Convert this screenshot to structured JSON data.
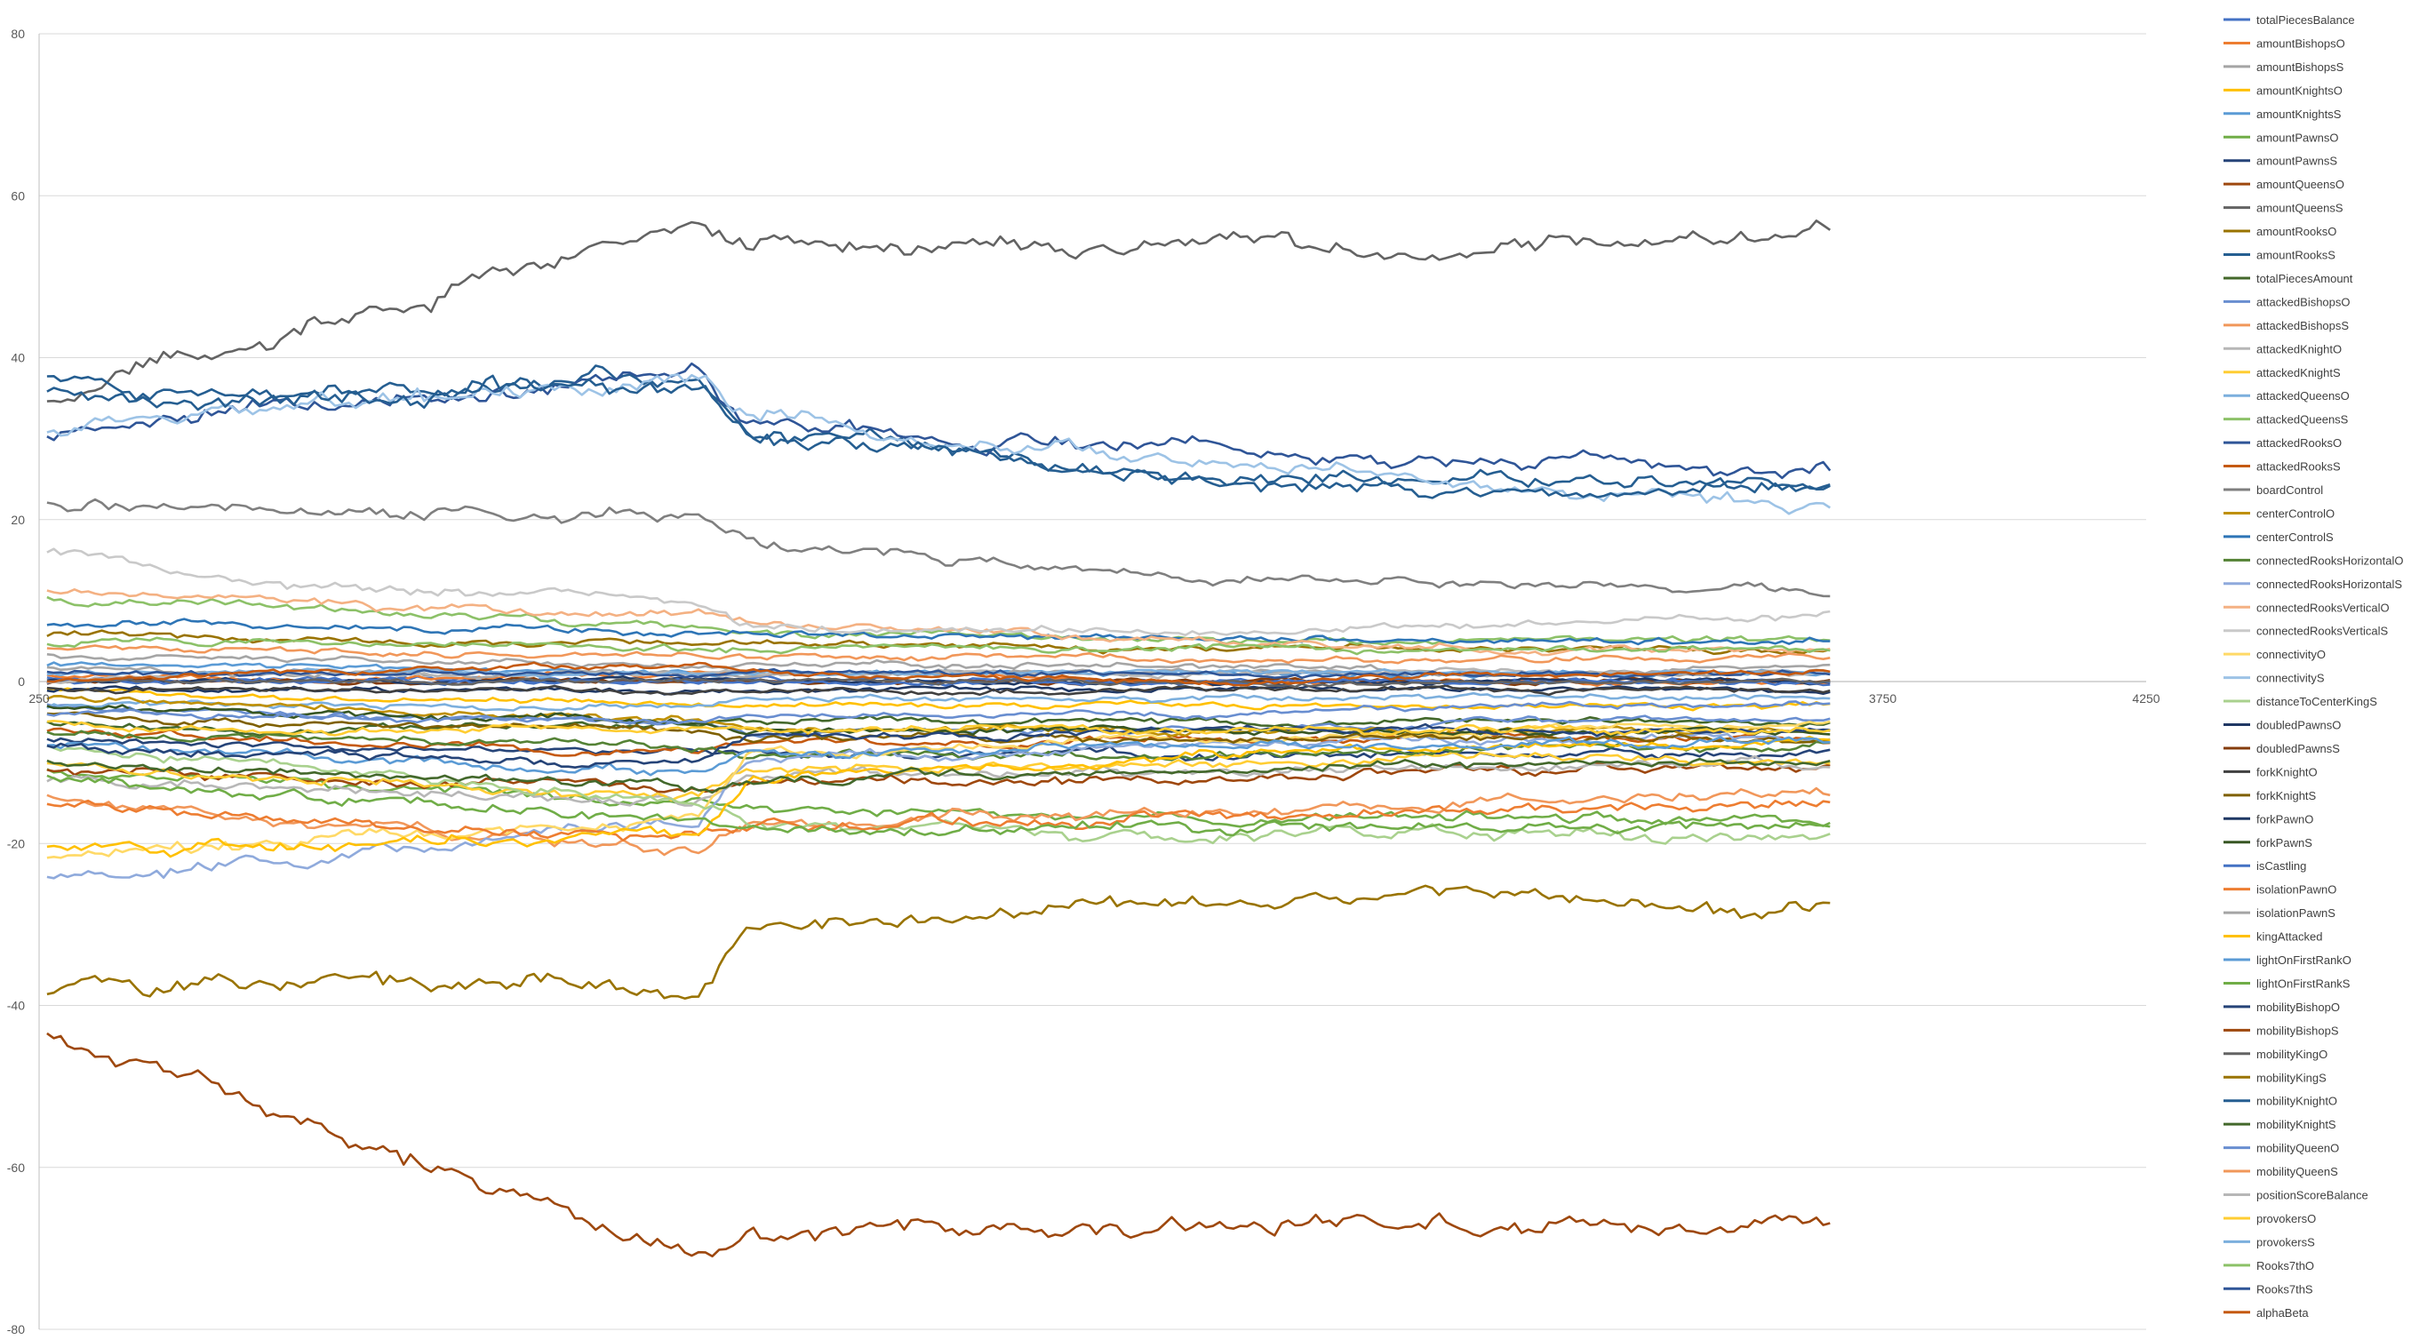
{
  "chart_data": {
    "type": "line",
    "title": "",
    "xlabel": "",
    "ylabel": "",
    "xlim": [
      250,
      4250
    ],
    "ylim": [
      -80,
      80
    ],
    "x_ticks": [
      "250",
      "3750",
      "4250"
    ],
    "y_ticks": [
      "80",
      "60",
      "40",
      "20",
      "0",
      "-20",
      "-40",
      "-60",
      "-80"
    ],
    "y_tick_values": [
      80,
      60,
      40,
      20,
      0,
      -20,
      -40,
      -60,
      -80
    ],
    "x_tick_values": [
      250,
      3750,
      4250
    ],
    "grid": "horizontal",
    "legend_position": "right",
    "x": [
      265,
      650,
      1500,
      1600,
      2500,
      3000,
      3650
    ],
    "series": [
      {
        "name": "totalPiecesBalance",
        "color": "#4472c4",
        "values": [
          0.5,
          0.3,
          0.2,
          0.1,
          0.0,
          -0.1,
          0.1
        ]
      },
      {
        "name": "amountBishopsO",
        "color": "#ed7d31",
        "values": [
          1,
          0,
          1,
          1,
          0,
          0,
          0
        ]
      },
      {
        "name": "amountBishopsS",
        "color": "#a5a5a5",
        "values": [
          3,
          3,
          2,
          2,
          2,
          1,
          2
        ]
      },
      {
        "name": "amountKnightsO",
        "color": "#ffc000",
        "values": [
          -1,
          -2,
          -3,
          -3,
          -3,
          -3,
          -3
        ]
      },
      {
        "name": "amountKnightsS",
        "color": "#5b9bd5",
        "values": [
          2,
          2,
          1,
          1,
          1,
          1,
          1
        ]
      },
      {
        "name": "amountPawnsO",
        "color": "#70ad47",
        "values": [
          -11,
          -12,
          -15,
          -16,
          -17,
          -17,
          -17
        ]
      },
      {
        "name": "amountPawnsS",
        "color": "#264478",
        "values": [
          -7,
          -8,
          -9,
          -9,
          -9,
          -9,
          -9
        ]
      },
      {
        "name": "amountQueensO",
        "color": "#9e480e",
        "values": [
          -11,
          -12,
          -13,
          -12,
          -12,
          -11,
          -11
        ]
      },
      {
        "name": "amountQueensS",
        "color": "#636363",
        "values": [
          35,
          42,
          56,
          54,
          54,
          53,
          55
        ]
      },
      {
        "name": "amountRooksO",
        "color": "#997300",
        "values": [
          6,
          5,
          5,
          5,
          4,
          4,
          4
        ]
      },
      {
        "name": "amountRooksS",
        "color": "#255e91",
        "values": [
          37,
          36,
          37,
          31,
          25,
          25,
          24
        ]
      },
      {
        "name": "totalPiecesAmount",
        "color": "#43682b",
        "values": [
          -5,
          -6,
          -5,
          -5,
          -5,
          -5,
          -5
        ]
      },
      {
        "name": "attackedBishopsO",
        "color": "#698ed0",
        "values": [
          -3,
          -4,
          -5,
          -6,
          -6,
          -5,
          -5
        ]
      },
      {
        "name": "attackedBishopsS",
        "color": "#f1975a",
        "values": [
          -14,
          -17,
          -21,
          -18,
          -16,
          -15,
          -14
        ]
      },
      {
        "name": "attackedKnightO",
        "color": "#b7b7b7",
        "values": [
          -12,
          -13,
          -15,
          -12,
          -11,
          -11,
          -10
        ]
      },
      {
        "name": "attackedKnightS",
        "color": "#ffcd33",
        "values": [
          -10,
          -12,
          -14,
          -11,
          -10,
          -9,
          -10
        ]
      },
      {
        "name": "attackedQueensO",
        "color": "#7cafdd",
        "values": [
          -3,
          -3,
          -3,
          -2,
          -2,
          -2,
          -2
        ]
      },
      {
        "name": "attackedQueensS",
        "color": "#8cc168",
        "values": [
          10,
          9,
          7,
          6,
          5,
          5,
          5
        ]
      },
      {
        "name": "attackedRooksO",
        "color": "#2f5597",
        "values": [
          30,
          33,
          38,
          32,
          28,
          27,
          26
        ]
      },
      {
        "name": "attackedRooksS",
        "color": "#c55a11",
        "values": [
          -6,
          -7,
          -9,
          -8,
          -7,
          -7,
          -7
        ]
      },
      {
        "name": "boardControl",
        "color": "#7f7f7f",
        "values": [
          22,
          21,
          21,
          17,
          13,
          12,
          11
        ]
      },
      {
        "name": "centerControlO",
        "color": "#bf9000",
        "values": [
          -2,
          -3,
          -5,
          -6,
          -6,
          -6,
          -6
        ]
      },
      {
        "name": "centerControlS",
        "color": "#2e75b6",
        "values": [
          7,
          7,
          6,
          6,
          5,
          5,
          5
        ]
      },
      {
        "name": "connectedRooksHorizontalO",
        "color": "#548235",
        "values": [
          -6,
          -7,
          -8,
          -9,
          -9,
          -8,
          -8
        ]
      },
      {
        "name": "connectedRooksHorizontalS",
        "color": "#8faadc",
        "values": [
          -24,
          -22,
          -18,
          -10,
          -8,
          -7,
          -7
        ]
      },
      {
        "name": "connectedRooksVerticalO",
        "color": "#f4b183",
        "values": [
          11,
          10,
          8,
          7,
          5,
          4,
          4
        ]
      },
      {
        "name": "connectedRooksVerticalS",
        "color": "#c9c9c9",
        "values": [
          16,
          12,
          10,
          7,
          6,
          7,
          8
        ]
      },
      {
        "name": "connectivityO",
        "color": "#ffd966",
        "values": [
          -22,
          -20,
          -17,
          -9,
          -7,
          -6,
          -5
        ]
      },
      {
        "name": "connectivityS",
        "color": "#9dc3e6",
        "values": [
          31,
          34,
          37,
          33,
          27,
          24,
          21
        ]
      },
      {
        "name": "distanceToCenterKingS",
        "color": "#a9d18e",
        "values": [
          -8,
          -10,
          -15,
          -18,
          -19,
          -19,
          -19
        ]
      },
      {
        "name": "doubledPawnsO",
        "color": "#203864",
        "values": [
          -1,
          -1,
          -1,
          -1,
          -1,
          -1,
          -1
        ]
      },
      {
        "name": "doubledPawnsS",
        "color": "#843c0c",
        "values": [
          0,
          0,
          0,
          0,
          0,
          0,
          0
        ]
      },
      {
        "name": "forkKnightO",
        "color": "#404040",
        "values": [
          -1,
          -1,
          -1,
          -1,
          -1,
          -1,
          -1
        ]
      },
      {
        "name": "forkKnightS",
        "color": "#7f6000",
        "values": [
          -4,
          -5,
          -6,
          -7,
          -7,
          -7,
          -7
        ]
      },
      {
        "name": "forkPawnO",
        "color": "#1f3864",
        "values": [
          0,
          0,
          0,
          0,
          0,
          0,
          0
        ]
      },
      {
        "name": "forkPawnS",
        "color": "#375623",
        "values": [
          -3,
          -4,
          -5,
          -6,
          -6,
          -6,
          -6
        ]
      },
      {
        "name": "isCastling",
        "color": "#4472c4",
        "values": [
          0,
          0,
          0,
          0,
          0,
          0,
          0
        ]
      },
      {
        "name": "isolationPawnO",
        "color": "#ed7d31",
        "values": [
          -15,
          -17,
          -19,
          -18,
          -17,
          -16,
          -15
        ]
      },
      {
        "name": "isolationPawnS",
        "color": "#a5a5a5",
        "values": [
          2,
          1,
          1,
          1,
          1,
          1,
          1
        ]
      },
      {
        "name": "kingAttacked",
        "color": "#ffc000",
        "values": [
          -21,
          -20,
          -19,
          -12,
          -9,
          -8,
          -7
        ]
      },
      {
        "name": "lightOnFirstRankO",
        "color": "#5b9bd5",
        "values": [
          -8,
          -9,
          -11,
          -9,
          -8,
          -8,
          -7
        ]
      },
      {
        "name": "lightOnFirstRankS",
        "color": "#70ad47",
        "values": [
          -12,
          -14,
          -17,
          -18,
          -18,
          -18,
          -18
        ]
      },
      {
        "name": "mobilityBishopO",
        "color": "#264478",
        "values": [
          -8,
          -9,
          -10,
          -7,
          -6,
          -6,
          -6
        ]
      },
      {
        "name": "mobilityBishopS",
        "color": "#9e480e",
        "values": [
          -43,
          -52,
          -71,
          -68,
          -67,
          -67,
          -67
        ]
      },
      {
        "name": "mobilityKingO",
        "color": "#636363",
        "values": [
          0,
          0,
          0,
          0,
          0,
          0,
          0
        ]
      },
      {
        "name": "mobilityKingS",
        "color": "#997300",
        "values": [
          -38,
          -37,
          -38,
          -30,
          -27,
          -26,
          -29
        ]
      },
      {
        "name": "mobilityKnightO",
        "color": "#255e91",
        "values": [
          36,
          35,
          37,
          30,
          25,
          24,
          24
        ]
      },
      {
        "name": "mobilityKnightS",
        "color": "#43682b",
        "values": [
          -10,
          -11,
          -13,
          -12,
          -11,
          -10,
          -10
        ]
      },
      {
        "name": "mobilityQueenO",
        "color": "#698ed0",
        "values": [
          -4,
          -4,
          -5,
          -4,
          -4,
          -3,
          -3
        ]
      },
      {
        "name": "mobilityQueenS",
        "color": "#f1975a",
        "values": [
          4,
          4,
          3,
          3,
          3,
          3,
          3
        ]
      },
      {
        "name": "positionScoreBalance",
        "color": "#b7b7b7",
        "values": [
          0,
          1,
          1,
          1,
          1,
          1,
          1
        ]
      },
      {
        "name": "provokersO",
        "color": "#ffcd33",
        "values": [
          -5,
          -6,
          -6,
          -6,
          -6,
          -6,
          -6
        ]
      },
      {
        "name": "provokersS",
        "color": "#7cafdd",
        "values": [
          1,
          1,
          1,
          1,
          1,
          1,
          1
        ]
      },
      {
        "name": "Rooks7thO",
        "color": "#8cc168",
        "values": [
          5,
          5,
          4,
          4,
          4,
          4,
          4
        ]
      },
      {
        "name": "Rooks7thS",
        "color": "#2f5597",
        "values": [
          1,
          1,
          1,
          1,
          1,
          1,
          1
        ]
      },
      {
        "name": "alphaBeta",
        "color": "#c55a11",
        "values": [
          0,
          1,
          2,
          1,
          0,
          1,
          1
        ]
      }
    ]
  }
}
